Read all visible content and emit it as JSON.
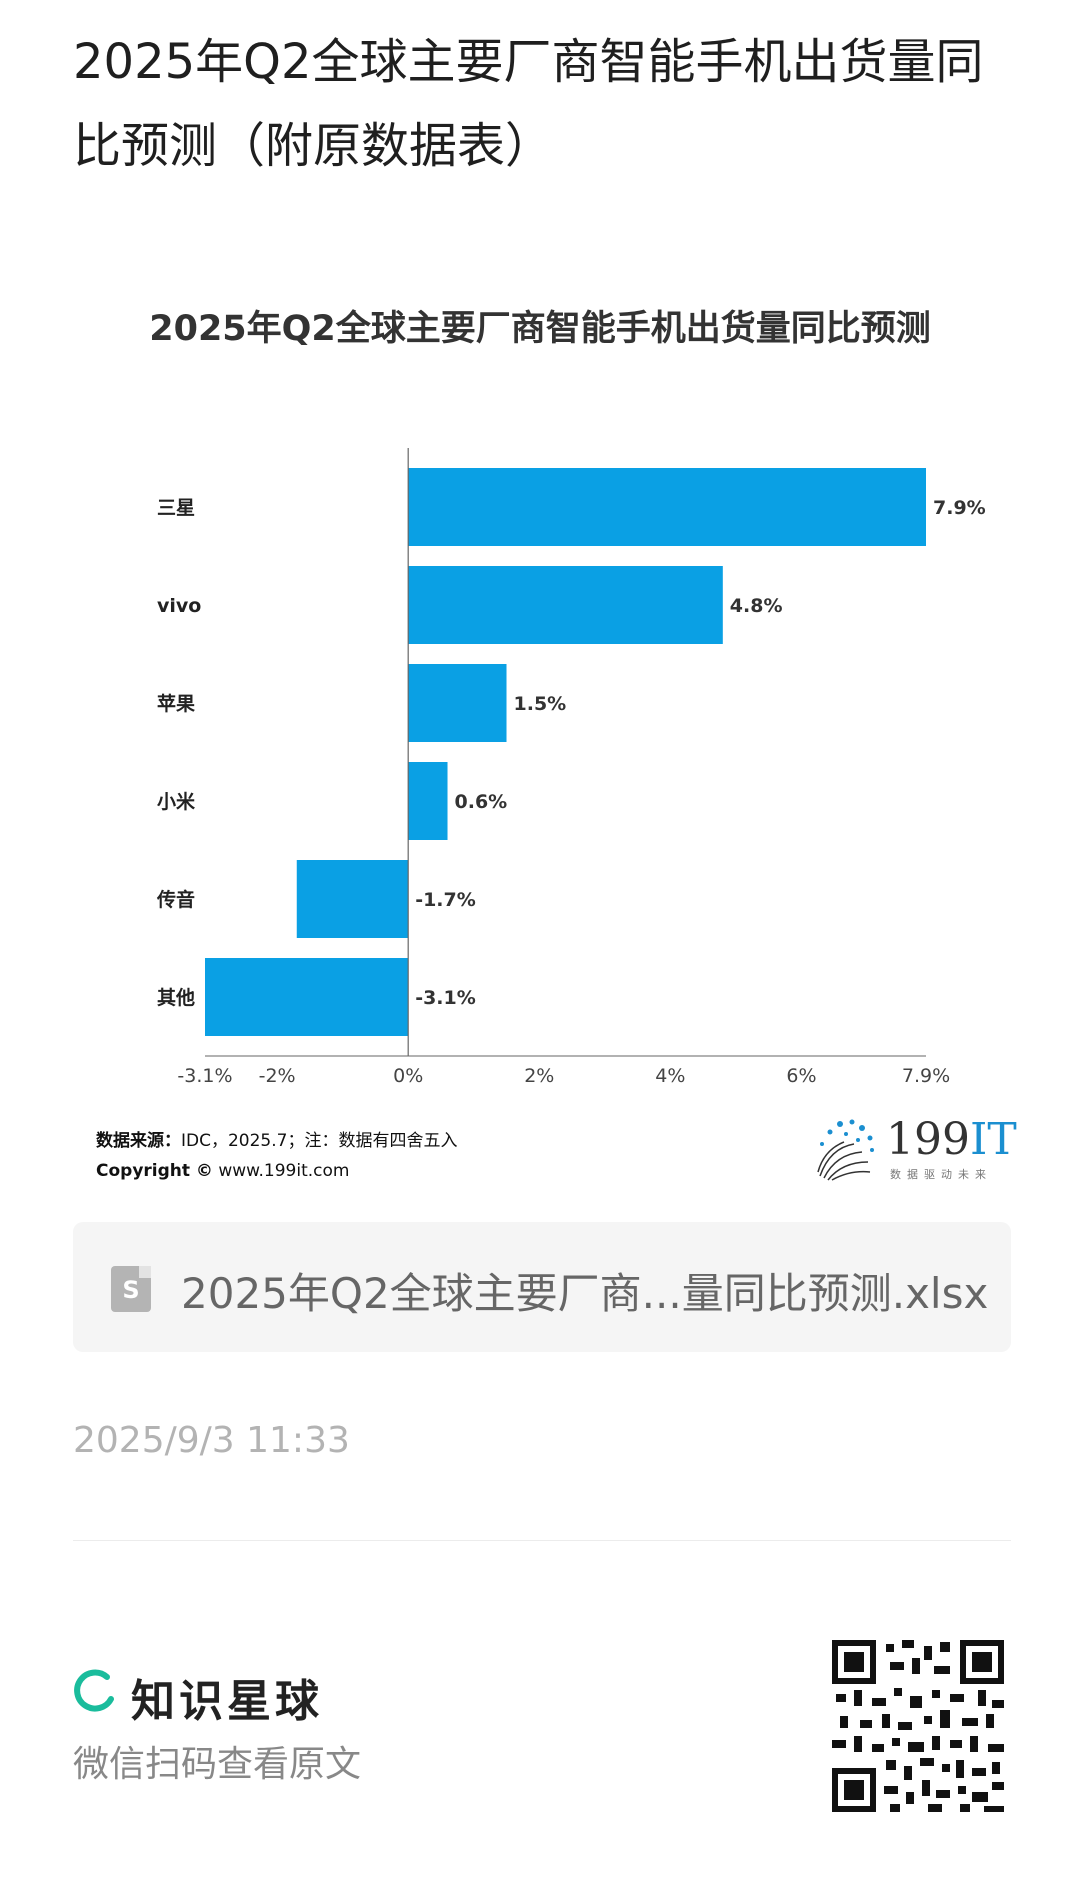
{
  "post": {
    "title": "2025年Q2全球主要厂商智能手机出货量同比预测（附原数据表）",
    "date": "2025/9/3 11:33"
  },
  "chart_data": {
    "type": "bar",
    "orientation": "horizontal",
    "title": "2025年Q2全球主要厂商智能手机出货量同比预测",
    "categories": [
      "三星",
      "vivo",
      "苹果",
      "小米",
      "传音",
      "其他"
    ],
    "values": [
      7.9,
      4.8,
      1.5,
      0.6,
      -1.7,
      -3.1
    ],
    "data_labels": [
      "7.9%",
      "4.8%",
      "1.5%",
      "0.6%",
      "-1.7%",
      "-3.1%"
    ],
    "xlim": [
      -3.1,
      7.9
    ],
    "xticks": [
      -3.1,
      -2,
      0,
      2,
      4,
      6,
      7.9
    ],
    "xtick_labels": [
      "-3.1%",
      "-2%",
      "0%",
      "2%",
      "4%",
      "6%",
      "7.9%"
    ],
    "xlabel": "",
    "ylabel": "",
    "grid": false,
    "bar_color": "#0aa0e4"
  },
  "source": {
    "label": "数据来源：",
    "text": "IDC，2025.7；注：数据有四舍五入",
    "copyright": "Copyright ©",
    "url": "www.199it.com"
  },
  "logo": {
    "text": "199",
    "accent": "IT",
    "sub": "数据驱动未来",
    "accent_color": "#1b8fd0"
  },
  "attachment": {
    "icon": "spreadsheet-file-icon",
    "icon_glyph": "S",
    "filename": "2025年Q2全球主要厂商...量同比预测.xlsx"
  },
  "footer": {
    "brand": "知识星球",
    "brand_color": "#1abc9c",
    "hint": "微信扫码查看原文"
  }
}
